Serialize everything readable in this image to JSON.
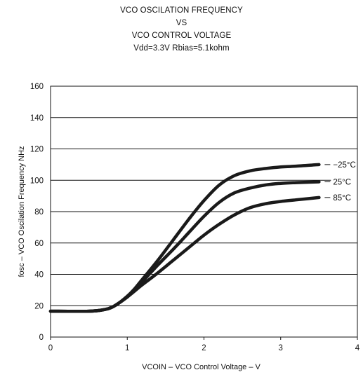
{
  "chart_data": {
    "type": "line",
    "title_lines": [
      "VCO OSCILATION FREQUENCY",
      "VS",
      "VCO CONTROL VOLTAGE",
      "Vdd=3.3V Rbias=5.1kohm"
    ],
    "xlabel": "VCOIN – VCO Control Voltage – V",
    "ylabel": "fosc – VCO Oscilation Frequency NHz",
    "xlim": [
      0,
      4
    ],
    "ylim": [
      0,
      160
    ],
    "xticks": [
      "0",
      "1",
      "2",
      "3",
      "4"
    ],
    "yticks": [
      "0",
      "20",
      "40",
      "60",
      "80",
      "100",
      "120",
      "140",
      "160"
    ],
    "grid": "horizontal",
    "series": [
      {
        "name": "−25°C",
        "x": [
          0,
          0.5,
          0.7,
          0.8,
          0.9,
          1.0,
          1.1,
          1.2,
          1.4,
          1.6,
          1.8,
          2.0,
          2.2,
          2.4,
          2.6,
          2.8,
          3.0,
          3.2,
          3.5
        ],
        "y": [
          16.5,
          16.5,
          17.5,
          19,
          22,
          26,
          31,
          37,
          49,
          62,
          75,
          87,
          97,
          103,
          106,
          107.5,
          108.5,
          109,
          110
        ]
      },
      {
        "name": "25°C",
        "x": [
          0,
          0.5,
          0.7,
          0.8,
          0.9,
          1.0,
          1.1,
          1.2,
          1.4,
          1.6,
          1.8,
          2.0,
          2.2,
          2.4,
          2.6,
          2.8,
          3.0,
          3.2,
          3.5
        ],
        "y": [
          16.5,
          16.5,
          17.5,
          19,
          22,
          26,
          30.5,
          35.5,
          46,
          56,
          66.5,
          77,
          86,
          92,
          95,
          97,
          98,
          98.5,
          99
        ]
      },
      {
        "name": "85°C",
        "x": [
          0,
          0.5,
          0.7,
          0.8,
          0.9,
          1.0,
          1.1,
          1.2,
          1.4,
          1.6,
          1.8,
          2.0,
          2.2,
          2.4,
          2.6,
          2.8,
          3.0,
          3.2,
          3.5
        ],
        "y": [
          16.5,
          16.5,
          17.5,
          19,
          22,
          25.5,
          29.5,
          33.5,
          41,
          49,
          57,
          65,
          72,
          78,
          82.5,
          85,
          86.5,
          87.5,
          89
        ]
      }
    ]
  }
}
